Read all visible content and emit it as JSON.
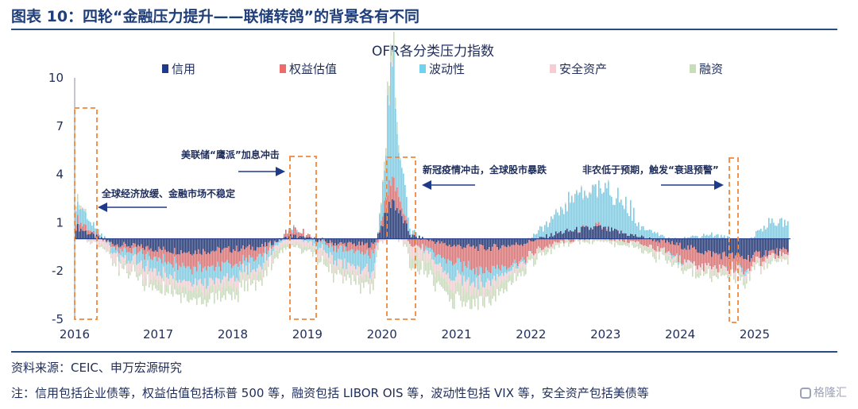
{
  "header": {
    "title": "图表 10：四轮“金融压力提升——联储转鸽”的背景各有不同"
  },
  "footer": {
    "source": "资料来源：CEIC、申万宏源研究",
    "note": "注：信用包括企业债等，权益估值包括标普 500 等，融资包括 LIBOR OIS 等，波动性包括 VIX 等，安全资产包括美债等",
    "watermark": "格隆汇"
  },
  "chart_data": {
    "type": "bar",
    "stacked": true,
    "title": "OFR各分类压力指数",
    "ylim": [
      -5,
      10
    ],
    "yticks": [
      10,
      7,
      4,
      1,
      -2,
      -5
    ],
    "xlim": [
      2016.0,
      2025.6
    ],
    "xticks": [
      "2016",
      "2017",
      "2018",
      "2019",
      "2020",
      "2021",
      "2022",
      "2023",
      "2024",
      "2025"
    ],
    "legend_position": "top",
    "colors": {
      "信用": "#1f3a8a",
      "权益估值": "#ef6b6b",
      "波动性": "#6fd3f0",
      "安全资产": "#f6cdd3",
      "融资": "#c7deb8"
    },
    "series": [
      {
        "name": "信用",
        "x": [
          2016.0,
          2016.2,
          2016.5,
          2017.0,
          2017.5,
          2018.0,
          2018.5,
          2018.9,
          2019.5,
          2020.0,
          2020.25,
          2020.5,
          2021.0,
          2021.5,
          2022.0,
          2022.5,
          2023.0,
          2023.5,
          2024.0,
          2024.5,
          2025.0,
          2025.3
        ],
        "values": [
          0.8,
          0.3,
          -0.3,
          -0.6,
          -0.8,
          -0.7,
          -0.5,
          0.2,
          -0.3,
          -0.4,
          2.5,
          0.2,
          -0.4,
          -0.6,
          -0.3,
          0.4,
          0.7,
          0.2,
          -0.3,
          -0.9,
          -1.2,
          -0.8
        ]
      },
      {
        "name": "权益估值",
        "x": [
          2016.0,
          2016.2,
          2016.5,
          2017.0,
          2017.5,
          2018.0,
          2018.5,
          2018.9,
          2019.5,
          2020.0,
          2020.25,
          2020.5,
          2021.0,
          2021.5,
          2022.0,
          2022.5,
          2023.0,
          2023.5,
          2024.0,
          2024.5,
          2025.0,
          2025.3
        ],
        "values": [
          0.5,
          0.2,
          -0.2,
          -0.5,
          -0.9,
          -1.0,
          -0.6,
          0.5,
          -0.3,
          -0.6,
          1.5,
          -0.3,
          -1.0,
          -1.4,
          -1.0,
          -0.2,
          0.1,
          -0.2,
          -0.8,
          -0.9,
          -0.7,
          -0.3
        ]
      },
      {
        "name": "波动性",
        "x": [
          2016.0,
          2016.2,
          2016.5,
          2017.0,
          2017.5,
          2018.0,
          2018.5,
          2018.9,
          2019.5,
          2020.0,
          2020.25,
          2020.5,
          2021.0,
          2021.5,
          2022.0,
          2022.5,
          2023.0,
          2023.5,
          2024.0,
          2024.5,
          2025.0,
          2025.3
        ],
        "values": [
          1.2,
          0.5,
          -0.3,
          -0.8,
          -1.0,
          -0.9,
          -0.6,
          0.2,
          -0.8,
          -1.2,
          5.0,
          0.3,
          -1.0,
          -0.7,
          -0.2,
          1.2,
          1.8,
          0.8,
          -0.1,
          0.3,
          -0.2,
          1.0
        ]
      },
      {
        "name": "安全资产",
        "x": [
          2016.0,
          2016.2,
          2016.5,
          2017.0,
          2017.5,
          2018.0,
          2018.5,
          2018.9,
          2019.5,
          2020.0,
          2020.25,
          2020.5,
          2021.0,
          2021.5,
          2022.0,
          2022.5,
          2023.0,
          2023.5,
          2024.0,
          2024.5,
          2025.0,
          2025.3
        ],
        "values": [
          0.2,
          -0.2,
          -0.4,
          -0.6,
          -0.5,
          -0.5,
          -0.4,
          -0.4,
          -0.5,
          -0.5,
          0.2,
          -0.6,
          -0.6,
          -0.5,
          -0.2,
          0.0,
          0.0,
          -0.1,
          -0.2,
          -0.3,
          -0.3,
          -0.2
        ]
      },
      {
        "name": "融资",
        "x": [
          2016.0,
          2016.2,
          2016.5,
          2017.0,
          2017.5,
          2018.0,
          2018.5,
          2018.9,
          2019.5,
          2020.0,
          2020.25,
          2020.5,
          2021.0,
          2021.5,
          2022.0,
          2022.5,
          2023.0,
          2023.5,
          2024.0,
          2024.5,
          2025.0,
          2025.3
        ],
        "values": [
          0.3,
          0.0,
          -0.2,
          -0.4,
          -0.6,
          -0.6,
          -0.5,
          -0.2,
          -0.4,
          -0.5,
          1.0,
          -0.7,
          -0.8,
          -0.7,
          -0.4,
          -0.2,
          -0.1,
          -0.2,
          -0.3,
          -0.3,
          -0.3,
          -0.2
        ]
      }
    ],
    "annotations": [
      {
        "text": "全球经济放缓、金融市场不稳定",
        "box": [
          2016.0,
          2016.3
        ],
        "arrow": "left"
      },
      {
        "text": "美联储“鹰派”加息冲击",
        "box": [
          2018.85,
          2019.2
        ],
        "arrow": "right"
      },
      {
        "text": "新冠疫情冲击，全球股市暴跌",
        "box": [
          2020.15,
          2020.55
        ],
        "arrow": "left"
      },
      {
        "text": "非农低于预期，触发“衰退预警”",
        "box": [
          2024.55,
          2024.68
        ],
        "arrow": "right"
      }
    ]
  }
}
